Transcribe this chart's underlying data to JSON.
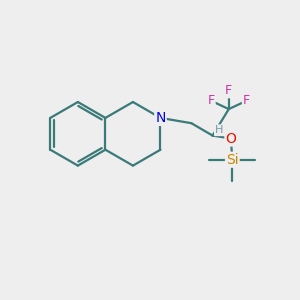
{
  "bg_color": "#eeeeee",
  "bond_color": "#3a7a78",
  "N_color": "#0000ee",
  "F_color": "#cc33aa",
  "O_color": "#ee1100",
  "Si_color": "#cc8800",
  "H_color": "#7799aa",
  "bond_width": 1.6,
  "figsize": [
    3.0,
    3.0
  ],
  "dpi": 100,
  "xlim": [
    0,
    10
  ],
  "ylim": [
    0,
    10
  ]
}
